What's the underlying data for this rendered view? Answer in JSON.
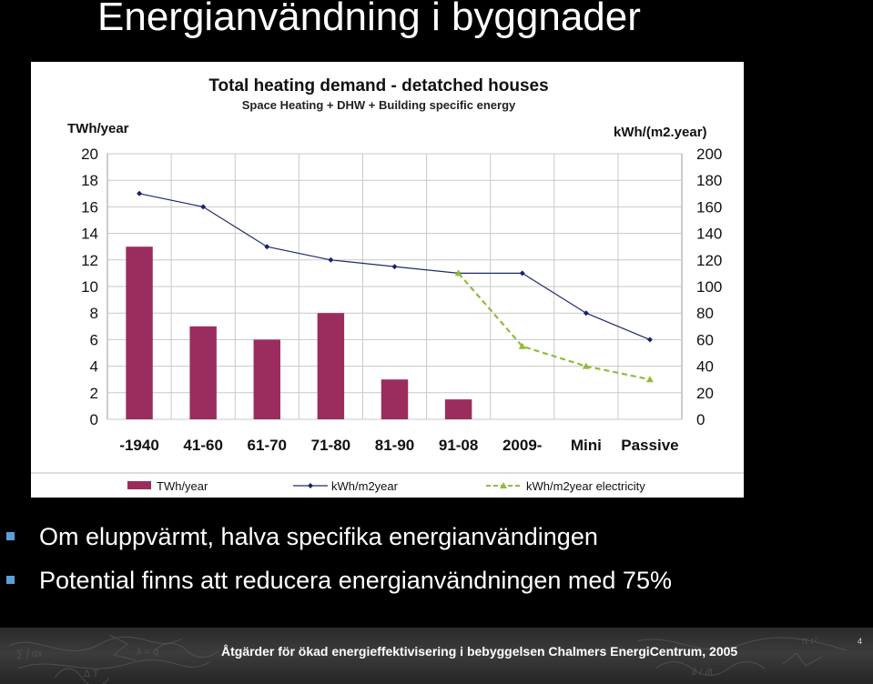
{
  "slide": {
    "title": "Energianvändning i byggnader",
    "bullets": [
      "Om eluppvärmt, halva specifika energianvändingen",
      "Potential finns att reducera energianvändningen med 75%"
    ],
    "footer": "Åtgärder för ökad energieffektivisering i bebyggelsen Chalmers EnergiCentrum, 2005",
    "page_number": "4"
  },
  "colors": {
    "background": "#000000",
    "bar": "#9b2d5e",
    "line": "#1f2a6e",
    "line_marker": "#1a2070",
    "electricity_line": "#8fbc3c",
    "grid": "#c8c8c8",
    "bullet_square": "#5aa0d8"
  },
  "chart_data": {
    "type": "bar",
    "title": "Total heating demand - detatched houses",
    "subtitle": "Space Heating + DHW + Building specific energy",
    "ylabel_left": "TWh/year",
    "ylabel_right": "kWh/(m2.year)",
    "categories": [
      "-1940",
      "41-60",
      "61-70",
      "71-80",
      "81-90",
      "91-08",
      "2009-",
      "Mini",
      "Passive"
    ],
    "ylim_left": [
      0,
      20
    ],
    "ylim_right": [
      0,
      200
    ],
    "yticks_left": [
      "0",
      "2",
      "4",
      "6",
      "8",
      "10",
      "12",
      "14",
      "16",
      "18",
      "20"
    ],
    "yticks_right": [
      "0",
      "20",
      "40",
      "60",
      "80",
      "100",
      "120",
      "140",
      "160",
      "180",
      "200"
    ],
    "grid": true,
    "legend_position": "bottom",
    "series": [
      {
        "name": "TWh/year",
        "kind": "bar",
        "axis": "left",
        "values": [
          13,
          7,
          6,
          8,
          3,
          1.5,
          null,
          null,
          null
        ]
      },
      {
        "name": "kWh/m2year",
        "kind": "line",
        "axis": "right",
        "values": [
          170,
          160,
          130,
          120,
          115,
          110,
          110,
          80,
          60
        ]
      },
      {
        "name": "kWh/m2year electricity",
        "kind": "line-dashed",
        "axis": "right",
        "values": [
          null,
          null,
          null,
          null,
          null,
          110,
          55,
          40,
          30
        ]
      }
    ]
  }
}
